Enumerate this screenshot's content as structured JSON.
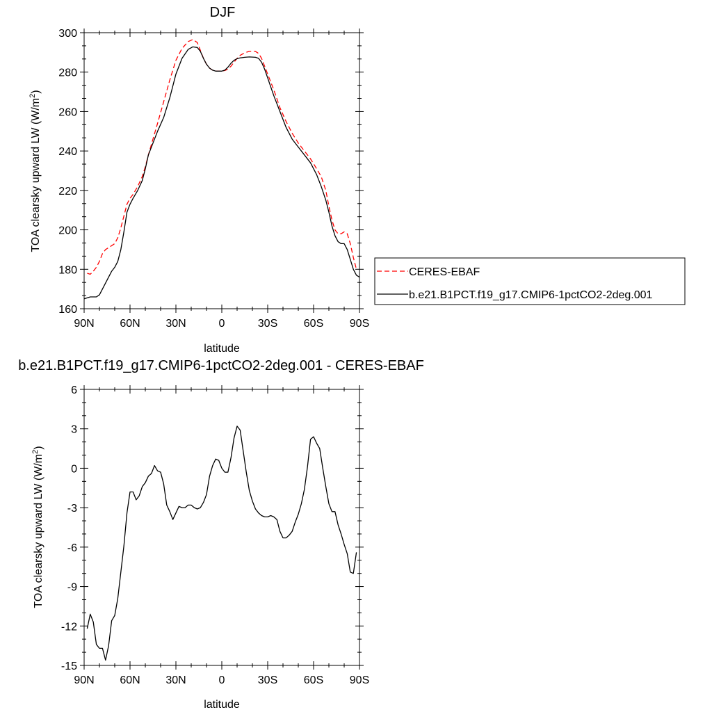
{
  "chart_data": [
    {
      "type": "line",
      "title": "DJF",
      "xlabel": "latitude",
      "ylabel": "TOA clearsky upward LW (W/m",
      "ylabel_sup": "2",
      "ylabel_end": ")",
      "xlim": [
        90,
        -90
      ],
      "ylim": [
        160,
        300
      ],
      "x_ticks": [
        {
          "value": 90,
          "label": "90N"
        },
        {
          "value": 60,
          "label": "60N"
        },
        {
          "value": 30,
          "label": "30N"
        },
        {
          "value": 0,
          "label": "0"
        },
        {
          "value": -30,
          "label": "30S"
        },
        {
          "value": -60,
          "label": "60S"
        },
        {
          "value": -90,
          "label": "90S"
        }
      ],
      "y_ticks": [
        {
          "value": 160,
          "label": "160"
        },
        {
          "value": 180,
          "label": "180"
        },
        {
          "value": 200,
          "label": "200"
        },
        {
          "value": 220,
          "label": "220"
        },
        {
          "value": 240,
          "label": "240"
        },
        {
          "value": 260,
          "label": "260"
        },
        {
          "value": 280,
          "label": "280"
        },
        {
          "value": 300,
          "label": "300"
        }
      ],
      "legend_placement": "right",
      "series": [
        {
          "name": "CERES-EBAF",
          "color": "#ff0000",
          "dash": "dashed",
          "x": [
            88,
            86,
            84,
            82,
            80,
            78,
            76,
            74,
            72,
            70,
            68,
            66,
            64,
            62,
            60,
            58,
            55,
            52,
            50,
            48,
            45,
            42,
            38,
            34,
            30,
            26,
            22,
            19,
            16,
            14,
            12,
            10,
            8,
            6,
            4,
            2,
            0,
            -2,
            -4,
            -6,
            -8,
            -10,
            -12,
            -15,
            -18,
            -22,
            -24,
            -26,
            -28,
            -30,
            -34,
            -38,
            -42,
            -46,
            -50,
            -54,
            -58,
            -62,
            -65,
            -68,
            -70,
            -72,
            -74,
            -76,
            -78,
            -80,
            -82,
            -84,
            -86,
            -88
          ],
          "y": [
            178,
            177.5,
            179,
            181,
            184,
            188,
            190,
            191,
            192,
            193,
            196,
            201,
            207,
            213,
            216,
            218,
            222,
            227,
            232,
            238,
            246,
            254,
            265,
            276,
            286,
            292,
            295.5,
            296.5,
            295,
            291,
            287,
            284,
            282,
            281,
            280.5,
            280.5,
            280.5,
            280.8,
            281.5,
            283,
            285,
            287,
            288.5,
            289.8,
            290.5,
            290.5,
            289.5,
            287,
            283,
            279,
            271,
            262,
            255,
            249,
            244,
            240,
            236,
            231,
            227,
            220,
            212,
            205,
            200,
            198,
            198,
            199,
            198,
            193,
            186,
            180
          ]
        },
        {
          "name": "b.e21.B1PCT.f19_g17.CMIP6-1pctCO2-2deg.001",
          "color": "#000000",
          "dash": "solid",
          "x": [
            90,
            88,
            86,
            84,
            82,
            80,
            78,
            76,
            74,
            72,
            70,
            68,
            66,
            64,
            62,
            60,
            58,
            55,
            52,
            50,
            48,
            45,
            42,
            38,
            34,
            30,
            26,
            22,
            19,
            16,
            14,
            12,
            10,
            8,
            6,
            4,
            2,
            0,
            -2,
            -4,
            -6,
            -8,
            -10,
            -12,
            -15,
            -18,
            -22,
            -24,
            -26,
            -28,
            -30,
            -34,
            -38,
            -42,
            -46,
            -50,
            -54,
            -58,
            -62,
            -65,
            -68,
            -70,
            -72,
            -74,
            -76,
            -78,
            -80,
            -82,
            -84,
            -86,
            -88,
            -90
          ],
          "y": [
            165,
            165.5,
            166,
            166,
            166,
            167,
            170,
            173,
            176,
            179,
            181,
            184,
            190,
            199,
            209,
            213,
            216,
            220,
            225,
            231,
            238,
            244,
            250,
            257,
            267,
            279,
            287,
            291.5,
            292.8,
            292.5,
            290.5,
            287,
            284,
            282,
            281,
            280.5,
            280.5,
            280.5,
            281,
            282.5,
            284.5,
            286,
            286.8,
            287.2,
            287.5,
            287.7,
            287.5,
            287,
            285,
            281.5,
            277,
            268,
            260,
            252,
            246,
            242,
            238,
            234,
            228,
            222,
            215,
            209,
            202,
            197,
            194,
            193,
            193,
            190,
            185,
            180,
            177,
            176
          ]
        }
      ]
    },
    {
      "type": "line",
      "title": "b.e21.B1PCT.f19_g17.CMIP6-1pctCO2-2deg.001 - CERES-EBAF",
      "xlabel": "latitude",
      "ylabel": "TOA clearsky upward LW (W/m",
      "ylabel_sup": "2",
      "ylabel_end": ")",
      "xlim": [
        90,
        -90
      ],
      "ylim": [
        -15,
        6
      ],
      "x_ticks": [
        {
          "value": 90,
          "label": "90N"
        },
        {
          "value": 60,
          "label": "60N"
        },
        {
          "value": 30,
          "label": "30N"
        },
        {
          "value": 0,
          "label": "0"
        },
        {
          "value": -30,
          "label": "30S"
        },
        {
          "value": -60,
          "label": "60S"
        },
        {
          "value": -90,
          "label": "90S"
        }
      ],
      "y_ticks": [
        {
          "value": -15,
          "label": "-15"
        },
        {
          "value": -12,
          "label": "-12"
        },
        {
          "value": -9,
          "label": "-9"
        },
        {
          "value": -6,
          "label": "-6"
        },
        {
          "value": -3,
          "label": "-3"
        },
        {
          "value": 0,
          "label": "0"
        },
        {
          "value": 3,
          "label": "3"
        },
        {
          "value": 6,
          "label": "6"
        }
      ],
      "series": [
        {
          "name": "",
          "color": "#000000",
          "dash": "solid",
          "x": [
            88,
            86,
            84,
            82,
            80,
            78,
            76,
            74,
            72,
            70,
            68,
            66,
            64,
            62,
            60,
            58,
            56,
            54,
            52,
            50,
            48,
            46,
            44,
            42,
            40,
            38,
            36,
            34,
            32,
            30,
            28,
            26,
            24,
            22,
            20,
            18,
            16,
            14,
            12,
            10,
            8,
            6,
            4,
            2,
            0,
            -2,
            -4,
            -6,
            -8,
            -10,
            -12,
            -14,
            -16,
            -18,
            -20,
            -22,
            -24,
            -26,
            -28,
            -30,
            -32,
            -34,
            -36,
            -38,
            -40,
            -42,
            -44,
            -46,
            -48,
            -50,
            -52,
            -54,
            -56,
            -58,
            -60,
            -62,
            -64,
            -66,
            -68,
            -70,
            -72,
            -74,
            -76,
            -78,
            -80,
            -82,
            -84,
            -86,
            -88
          ],
          "y": [
            -12.2,
            -11.1,
            -11.7,
            -13.4,
            -13.7,
            -13.7,
            -14.6,
            -13.5,
            -11.6,
            -11.2,
            -9.9,
            -7.9,
            -5.9,
            -3.4,
            -1.8,
            -1.8,
            -2.4,
            -2.1,
            -1.4,
            -1.1,
            -0.6,
            -0.4,
            0.2,
            -0.2,
            -0.3,
            -1.2,
            -2.8,
            -3.3,
            -3.9,
            -3.4,
            -2.9,
            -3.0,
            -3.0,
            -2.8,
            -2.8,
            -3.0,
            -3.1,
            -3.0,
            -2.6,
            -2.0,
            -0.6,
            0.2,
            0.7,
            0.6,
            0.0,
            -0.3,
            -0.3,
            0.8,
            2.3,
            3.2,
            2.9,
            1.3,
            -0.3,
            -1.7,
            -2.5,
            -3.1,
            -3.4,
            -3.6,
            -3.7,
            -3.7,
            -3.6,
            -3.7,
            -3.9,
            -4.8,
            -5.3,
            -5.3,
            -5.1,
            -4.8,
            -4.1,
            -3.5,
            -2.7,
            -1.6,
            0.1,
            2.2,
            2.4,
            1.9,
            1.5,
            0.0,
            -1.4,
            -2.7,
            -3.3,
            -3.3,
            -4.3,
            -5.0,
            -5.8,
            -6.5,
            -7.9,
            -8.0,
            -6.4
          ]
        }
      ]
    }
  ]
}
